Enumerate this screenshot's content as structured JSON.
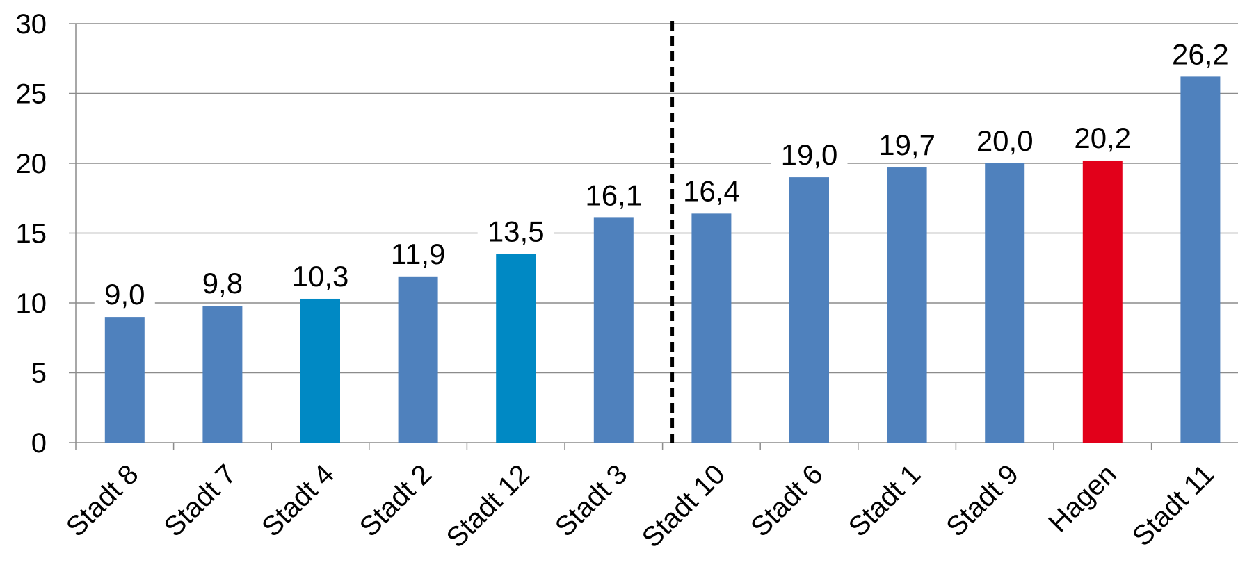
{
  "chart_data": {
    "type": "bar",
    "title": "",
    "xlabel": "",
    "ylabel": "",
    "categories": [
      "Stadt 8",
      "Stadt 7",
      "Stadt 4",
      "Stadt 2",
      "Stadt 12",
      "Stadt 3",
      "Stadt 10",
      "Stadt 6",
      "Stadt 1",
      "Stadt 9",
      "Hagen",
      "Stadt 11"
    ],
    "values": [
      9.0,
      9.8,
      10.3,
      11.9,
      13.5,
      16.1,
      16.4,
      19.0,
      19.7,
      20.0,
      20.2,
      26.2
    ],
    "value_labels": [
      "9,0",
      "9,8",
      "10,3",
      "11,9",
      "13,5",
      "16,1",
      "16,4",
      "19,0",
      "19,7",
      "20,0",
      "20,2",
      "26,2"
    ],
    "bar_colors": [
      "#4F81BD",
      "#4F81BD",
      "#0089C4",
      "#4F81BD",
      "#0089C4",
      "#4F81BD",
      "#4F81BD",
      "#4F81BD",
      "#4F81BD",
      "#4F81BD",
      "#E2001A",
      "#4F81BD"
    ],
    "ylim": [
      0,
      30
    ],
    "yticks": [
      0,
      5,
      10,
      15,
      20,
      25,
      30
    ],
    "grid": true,
    "legend": "none",
    "divider": {
      "style": "dashed",
      "between": [
        "Stadt 3",
        "Stadt 10"
      ],
      "color": "#000000"
    }
  }
}
